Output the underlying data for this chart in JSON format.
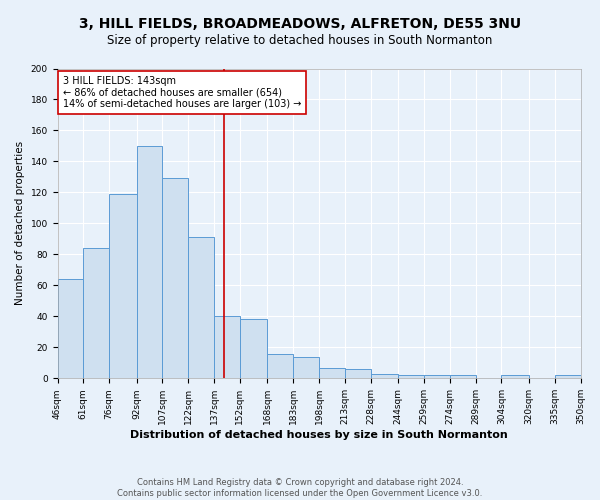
{
  "title": "3, HILL FIELDS, BROADMEADOWS, ALFRETON, DE55 3NU",
  "subtitle": "Size of property relative to detached houses in South Normanton",
  "xlabel": "Distribution of detached houses by size in South Normanton",
  "ylabel": "Number of detached properties",
  "footer1": "Contains HM Land Registry data © Crown copyright and database right 2024.",
  "footer2": "Contains public sector information licensed under the Open Government Licence v3.0.",
  "bin_labels": [
    "46sqm",
    "61sqm",
    "76sqm",
    "92sqm",
    "107sqm",
    "122sqm",
    "137sqm",
    "152sqm",
    "168sqm",
    "183sqm",
    "198sqm",
    "213sqm",
    "228sqm",
    "244sqm",
    "259sqm",
    "274sqm",
    "289sqm",
    "304sqm",
    "320sqm",
    "335sqm",
    "350sqm"
  ],
  "bin_edges": [
    46,
    61,
    76,
    92,
    107,
    122,
    137,
    152,
    168,
    183,
    198,
    213,
    228,
    244,
    259,
    274,
    289,
    304,
    320,
    335,
    350
  ],
  "bar_heights": [
    64,
    84,
    119,
    150,
    129,
    91,
    40,
    38,
    16,
    14,
    7,
    6,
    3,
    2,
    2,
    2,
    0,
    2,
    0,
    2
  ],
  "bar_facecolor": "#cfe0f0",
  "bar_edgecolor": "#5b9bd5",
  "redline_x": 143,
  "redline_color": "#cc0000",
  "annotation_line1": "3 HILL FIELDS: 143sqm",
  "annotation_line2": "← 86% of detached houses are smaller (654)",
  "annotation_line3": "14% of semi-detached houses are larger (103) →",
  "annotation_box_edgecolor": "#cc0000",
  "annotation_box_facecolor": "#ffffff",
  "ylim": [
    0,
    200
  ],
  "yticks": [
    0,
    20,
    40,
    60,
    80,
    100,
    120,
    140,
    160,
    180,
    200
  ],
  "background_color": "#e8f1fa",
  "plot_background": "#e8f1fa",
  "grid_color": "#ffffff",
  "title_fontsize": 10,
  "subtitle_fontsize": 8.5,
  "ylabel_fontsize": 7.5,
  "xlabel_fontsize": 8,
  "tick_fontsize": 6.5,
  "footer_fontsize": 6,
  "annotation_fontsize": 7
}
